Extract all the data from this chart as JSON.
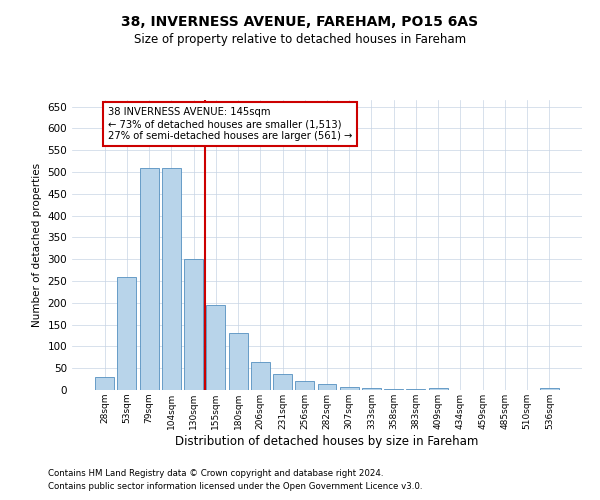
{
  "title_line1": "38, INVERNESS AVENUE, FAREHAM, PO15 6AS",
  "title_line2": "Size of property relative to detached houses in Fareham",
  "xlabel": "Distribution of detached houses by size in Fareham",
  "ylabel": "Number of detached properties",
  "categories": [
    "28sqm",
    "53sqm",
    "79sqm",
    "104sqm",
    "130sqm",
    "155sqm",
    "180sqm",
    "206sqm",
    "231sqm",
    "256sqm",
    "282sqm",
    "307sqm",
    "333sqm",
    "358sqm",
    "383sqm",
    "409sqm",
    "434sqm",
    "459sqm",
    "485sqm",
    "510sqm",
    "536sqm"
  ],
  "values": [
    30,
    260,
    510,
    510,
    300,
    195,
    130,
    65,
    37,
    20,
    13,
    8,
    5,
    3,
    2,
    5,
    1,
    1,
    1,
    1,
    5
  ],
  "bar_color": "#b8d4ea",
  "bar_edge_color": "#5590c0",
  "vline_x_idx": 4.5,
  "vline_color": "#cc0000",
  "annotation_text": "38 INVERNESS AVENUE: 145sqm\n← 73% of detached houses are smaller (1,513)\n27% of semi-detached houses are larger (561) →",
  "annotation_box_color": "#cc0000",
  "ylim": [
    0,
    665
  ],
  "yticks": [
    0,
    50,
    100,
    150,
    200,
    250,
    300,
    350,
    400,
    450,
    500,
    550,
    600,
    650
  ],
  "grid_color": "#c8d4e4",
  "footer1": "Contains HM Land Registry data © Crown copyright and database right 2024.",
  "footer2": "Contains public sector information licensed under the Open Government Licence v3.0.",
  "fig_width": 6.0,
  "fig_height": 5.0,
  "dpi": 100
}
